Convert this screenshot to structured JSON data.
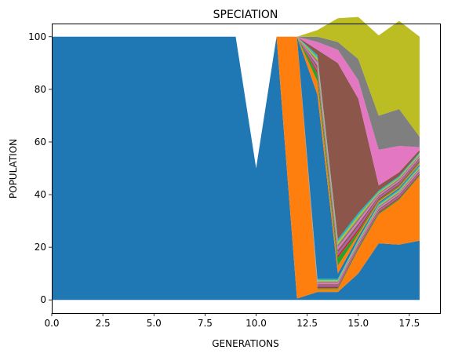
{
  "chart_data": {
    "type": "area",
    "title": "SPECIATION",
    "xlabel": "GENERATIONS",
    "ylabel": "POPULATION",
    "xlim": [
      0,
      19
    ],
    "ylim": [
      -5,
      105
    ],
    "xticks": [
      "0.0",
      "2.5",
      "5.0",
      "7.5",
      "10.0",
      "12.5",
      "15.0",
      "17.5"
    ],
    "xtick_values": [
      0,
      2.5,
      5,
      7.5,
      10,
      12.5,
      15,
      17.5
    ],
    "yticks": [
      "0",
      "20",
      "40",
      "60",
      "80",
      "100"
    ],
    "ytick_values": [
      0,
      20,
      40,
      60,
      80,
      100
    ],
    "grid": false,
    "legend": "none",
    "x": [
      0,
      1,
      2,
      3,
      4,
      5,
      6,
      7,
      8,
      9,
      10,
      11,
      12,
      13,
      14,
      15,
      16,
      17,
      18
    ],
    "series": [
      {
        "color": "#1f77b4",
        "values": [
          100,
          100,
          100,
          100,
          100,
          100,
          100,
          100,
          100,
          100,
          50,
          100,
          0.5,
          3,
          3,
          10,
          21.5,
          21,
          22.5
        ]
      },
      {
        "color": "#ff7f0e",
        "values": [
          null,
          null,
          null,
          null,
          null,
          null,
          null,
          null,
          null,
          null,
          null,
          0,
          99.5,
          1,
          1,
          9,
          11,
          17,
          24.5
        ]
      },
      {
        "color": "#2ca02c",
        "values": [
          null,
          null,
          null,
          null,
          null,
          null,
          null,
          null,
          null,
          null,
          null,
          null,
          0,
          0.5,
          0.5,
          0.5,
          0.5,
          0.5,
          0.5
        ]
      },
      {
        "color": "#d62728",
        "values": [
          null,
          null,
          null,
          null,
          null,
          null,
          null,
          null,
          null,
          null,
          null,
          null,
          0,
          0.5,
          0.5,
          0.5,
          0.5,
          0.5,
          0.5
        ]
      },
      {
        "color": "#9467bd",
        "values": [
          null,
          null,
          null,
          null,
          null,
          null,
          null,
          null,
          null,
          null,
          null,
          null,
          0,
          0.5,
          0.5,
          0.5,
          0.5,
          0.5,
          0.5
        ]
      },
      {
        "color": "#8c564b",
        "values": [
          null,
          null,
          null,
          null,
          null,
          null,
          null,
          null,
          null,
          null,
          null,
          null,
          0,
          0.5,
          0.5,
          0.5,
          0.5,
          0.5,
          0.5
        ]
      },
      {
        "color": "#e377c2",
        "values": [
          null,
          null,
          null,
          null,
          null,
          null,
          null,
          null,
          null,
          null,
          null,
          null,
          0,
          0.5,
          0.5,
          0.5,
          0.5,
          0.5,
          0.5
        ]
      },
      {
        "color": "#7f7f7f",
        "values": [
          null,
          null,
          null,
          null,
          null,
          null,
          null,
          null,
          null,
          null,
          null,
          null,
          0,
          0.5,
          0.5,
          0.5,
          0.5,
          0.5,
          0.5
        ]
      },
      {
        "color": "#bcbd22",
        "values": [
          null,
          null,
          null,
          null,
          null,
          null,
          null,
          null,
          null,
          null,
          null,
          null,
          0,
          0.5,
          0.5,
          0.5,
          0.5,
          0.5,
          0.5
        ]
      },
      {
        "color": "#17becf",
        "values": [
          null,
          null,
          null,
          null,
          null,
          null,
          null,
          null,
          null,
          null,
          null,
          null,
          0,
          0.5,
          0.5,
          0.5,
          0.5,
          0.5,
          0.5
        ]
      },
      {
        "color": "#1f77b4",
        "values": [
          null,
          null,
          null,
          null,
          null,
          null,
          null,
          null,
          null,
          null,
          null,
          null,
          0,
          70,
          2,
          1,
          0.5,
          0.5,
          0.5
        ]
      },
      {
        "color": "#ff7f0e",
        "values": [
          null,
          null,
          null,
          null,
          null,
          null,
          null,
          null,
          null,
          null,
          null,
          null,
          0,
          5,
          3,
          1,
          0.5,
          0.5,
          0.5
        ]
      },
      {
        "color": "#2ca02c",
        "values": [
          null,
          null,
          null,
          null,
          null,
          null,
          null,
          null,
          null,
          null,
          null,
          null,
          0,
          3,
          3,
          1,
          0.5,
          0.5,
          0.5
        ]
      },
      {
        "color": "#d62728",
        "values": [
          null,
          null,
          null,
          null,
          null,
          null,
          null,
          null,
          null,
          null,
          null,
          null,
          0,
          1,
          1,
          1,
          0.5,
          0.5,
          0.5
        ]
      },
      {
        "color": "#9467bd",
        "values": [
          null,
          null,
          null,
          null,
          null,
          null,
          null,
          null,
          null,
          null,
          null,
          null,
          0,
          1,
          1,
          1,
          0.5,
          0.5,
          0.5
        ]
      },
      {
        "color": "#8c564b",
        "values": [
          null,
          null,
          null,
          null,
          null,
          null,
          null,
          null,
          null,
          null,
          null,
          null,
          0,
          1,
          1,
          1,
          0.5,
          0.5,
          0.5
        ]
      },
      {
        "color": "#e377c2",
        "values": [
          null,
          null,
          null,
          null,
          null,
          null,
          null,
          null,
          null,
          null,
          null,
          null,
          0,
          1,
          1,
          1,
          0.5,
          0.5,
          0.5
        ]
      },
      {
        "color": "#7f7f7f",
        "values": [
          null,
          null,
          null,
          null,
          null,
          null,
          null,
          null,
          null,
          null,
          null,
          null,
          0,
          1,
          1,
          1,
          0.5,
          0.5,
          0.5
        ]
      },
      {
        "color": "#bcbd22",
        "values": [
          null,
          null,
          null,
          null,
          null,
          null,
          null,
          null,
          null,
          null,
          null,
          null,
          0,
          1,
          1,
          1,
          0.5,
          0.5,
          0.5
        ]
      },
      {
        "color": "#17becf",
        "values": [
          null,
          null,
          null,
          null,
          null,
          null,
          null,
          null,
          null,
          null,
          null,
          null,
          0,
          1,
          1,
          1,
          0.5,
          0.5,
          0.5
        ]
      },
      {
        "color": "#8c564b",
        "values": [
          null,
          null,
          null,
          null,
          null,
          null,
          null,
          null,
          null,
          null,
          null,
          null,
          0,
          2,
          67,
          43.5,
          2,
          1.5,
          1
        ]
      },
      {
        "color": "#e377c2",
        "values": [
          null,
          null,
          null,
          null,
          null,
          null,
          null,
          null,
          null,
          null,
          null,
          null,
          0,
          3,
          5,
          7,
          13.5,
          10,
          1
        ]
      },
      {
        "color": "#7f7f7f",
        "values": [
          null,
          null,
          null,
          null,
          null,
          null,
          null,
          null,
          null,
          null,
          null,
          null,
          0,
          2,
          3,
          8,
          13,
          14,
          4
        ]
      },
      {
        "color": "#bcbd22",
        "values": [
          null,
          null,
          null,
          null,
          null,
          null,
          null,
          null,
          null,
          null,
          null,
          null,
          0,
          2.5,
          9,
          16,
          30.5,
          33.5,
          38
        ]
      }
    ]
  }
}
